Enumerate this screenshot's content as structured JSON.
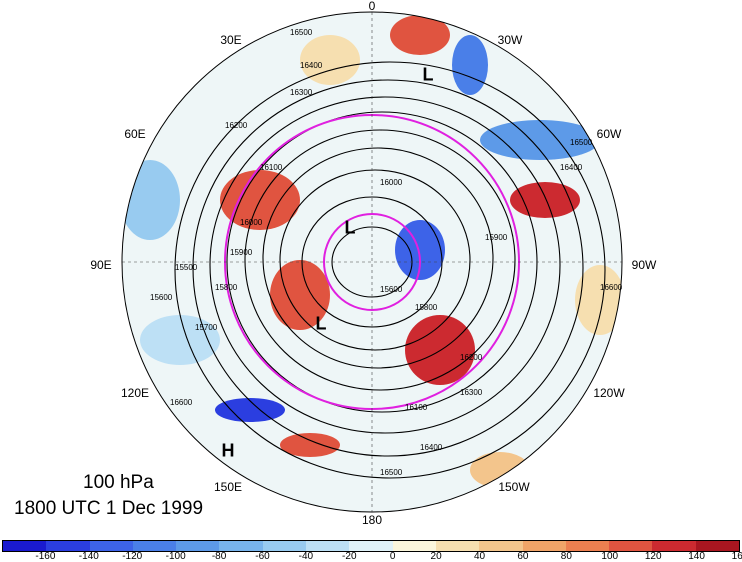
{
  "level": "100 hPa",
  "valid_time": "1800 UTC 1 Dec 1999",
  "longitude_labels": [
    "0",
    "30W",
    "60W",
    "90W",
    "120W",
    "150W",
    "180",
    "150E",
    "120E",
    "90E",
    "60E",
    "30E"
  ],
  "contour_labels": [
    "16500",
    "16400",
    "16300",
    "16200",
    "16100",
    "16000",
    "15900",
    "15800",
    "15700",
    "15600",
    "15500",
    "16600",
    "16400",
    "16300",
    "16500",
    "16100",
    "16200",
    "15900",
    "15800",
    "15600",
    "16000",
    "16400",
    "16500",
    "16600"
  ],
  "pressure_centers": [
    {
      "symbol": "L"
    },
    {
      "symbol": "L"
    },
    {
      "symbol": "L"
    },
    {
      "symbol": "H"
    }
  ],
  "colorbar": {
    "labels": [
      "-160",
      "-140",
      "-120",
      "-100",
      "-80",
      "-60",
      "-40",
      "-20",
      "0",
      "20",
      "40",
      "60",
      "80",
      "100",
      "120",
      "140",
      "160"
    ],
    "colors": [
      "#1a1ad0",
      "#2b3ee0",
      "#3d63e8",
      "#4a7fe8",
      "#5d9ae8",
      "#78b4ec",
      "#98cbf0",
      "#bde0f5",
      "#e0f2f8",
      "#fbf6dc",
      "#f6dfb0",
      "#f3c58c",
      "#f0a468",
      "#ec7f50",
      "#e05440",
      "#cc2a30",
      "#a81620"
    ]
  },
  "colors": {
    "contour": "#000000",
    "circle": "#e020e0",
    "land": "#555555",
    "background": "#ffffff"
  }
}
